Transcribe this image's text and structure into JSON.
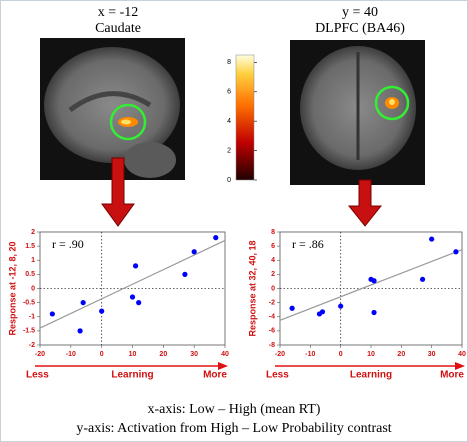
{
  "panels": [
    {
      "coordinate": "x = -12",
      "region": "Caudate"
    },
    {
      "coordinate": "y = 40",
      "region": "DLPFC (BA46)"
    }
  ],
  "colorbar": {
    "lim": [
      0,
      8.5
    ],
    "ticks": [
      0,
      2,
      4,
      6,
      8
    ]
  },
  "captions": [
    "x-axis: Low – High (mean RT)",
    "y-axis: Activation from High – Low Probability contrast"
  ],
  "chart_data": [
    {
      "type": "scatter",
      "annotation": "r = .90",
      "y_label": "Response at -12, 8, 20",
      "x_arrow_labels": [
        "Less",
        "Learning",
        "More"
      ],
      "x": [
        -16,
        -7,
        -6,
        0,
        10,
        11,
        12,
        27,
        30,
        37
      ],
      "y": [
        -0.9,
        -1.5,
        -0.5,
        -0.8,
        -0.3,
        0.8,
        -0.5,
        0.5,
        1.3,
        1.8
      ],
      "color": "#0000ff",
      "xlim": [
        -20,
        40
      ],
      "ylim": [
        -2,
        2
      ],
      "xticks": [
        -20,
        -10,
        0,
        10,
        20,
        30,
        40
      ],
      "yticks": [
        -2,
        -1.5,
        -1,
        -0.5,
        0,
        0.5,
        1,
        1.5,
        2
      ],
      "fit": {
        "x": [
          -20,
          40
        ],
        "y": [
          -1.4,
          1.7
        ]
      },
      "zero_lines": true
    },
    {
      "type": "scatter",
      "annotation": "r = .86",
      "y_label": "Response at 32, 40, 18",
      "x_arrow_labels": [
        "Less",
        "Learning",
        "More"
      ],
      "x": [
        -16,
        -7,
        -6,
        0,
        10,
        11,
        11,
        27,
        30,
        38
      ],
      "y": [
        -2.8,
        -3.6,
        -3.3,
        -2.5,
        1.3,
        1.1,
        -3.4,
        1.3,
        7,
        5.2
      ],
      "color": "#0000ff",
      "xlim": [
        -20,
        40
      ],
      "ylim": [
        -8,
        8
      ],
      "xticks": [
        -20,
        -10,
        0,
        10,
        20,
        30,
        40
      ],
      "yticks": [
        -8,
        -6,
        -4,
        -2,
        0,
        2,
        4,
        6,
        8
      ],
      "fit": {
        "x": [
          -20,
          40
        ],
        "y": [
          -4.5,
          5.5
        ]
      },
      "zero_lines": true
    }
  ]
}
